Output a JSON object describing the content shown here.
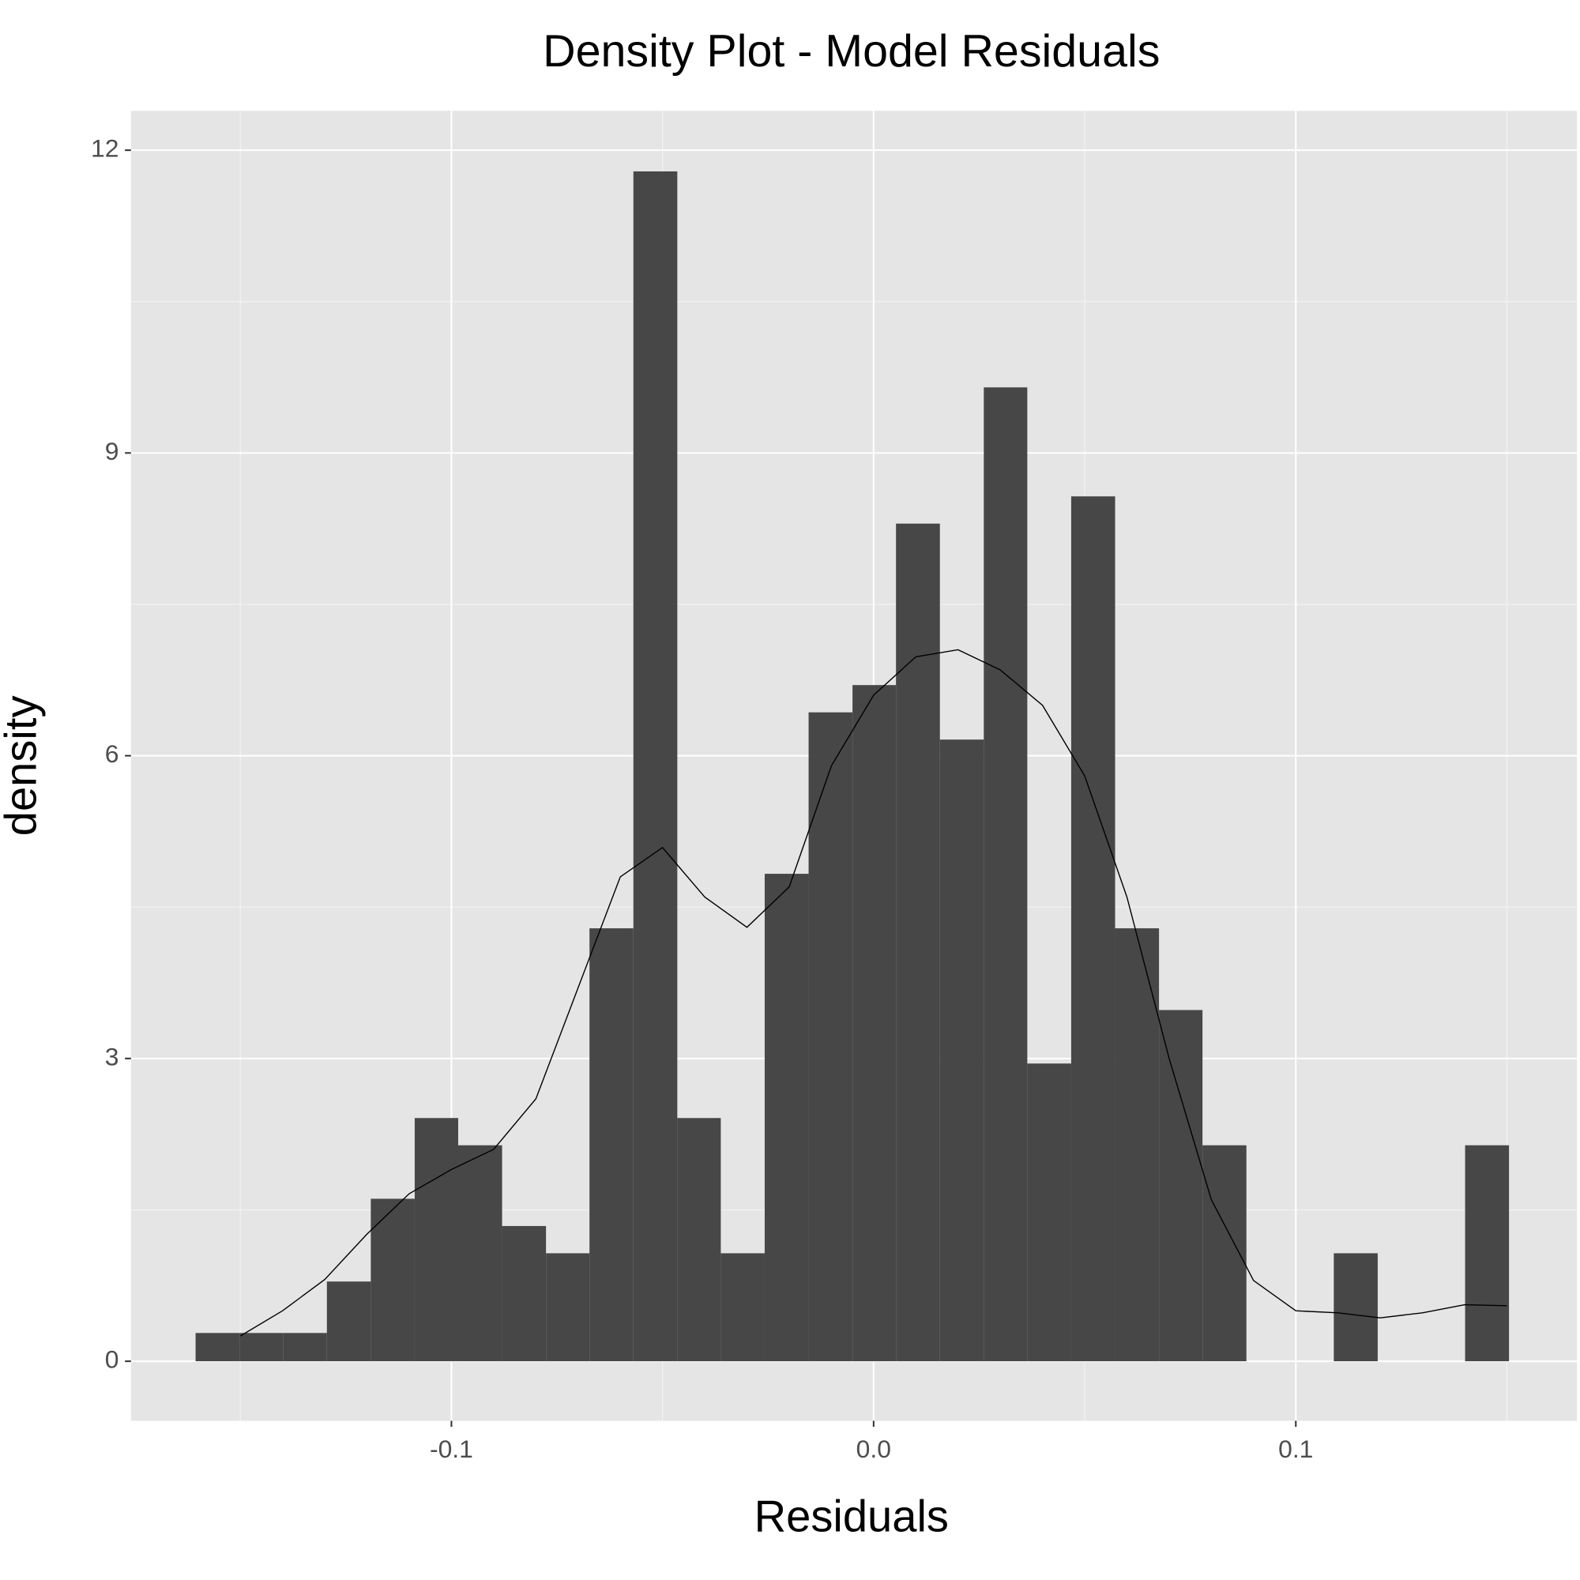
{
  "chart_data": {
    "type": "histogram",
    "title": "Density Plot - Model Residuals",
    "x_label": "Residuals",
    "y_label": "density",
    "bins": [
      -0.1606,
      -0.1502,
      -0.1399,
      -0.1295,
      -0.1191,
      -0.1087,
      -0.0984,
      -0.088,
      -0.0776,
      -0.0673,
      -0.0569,
      -0.0465,
      -0.0362,
      -0.0258,
      -0.0154,
      -0.005,
      0.0053,
      0.0157,
      0.0261,
      0.0364,
      0.0468,
      0.0572,
      0.0676,
      0.0779,
      0.0883,
      0.0987,
      0.109,
      0.1194,
      0.1298,
      0.1401,
      0.1505
    ],
    "values": [
      0.28,
      0.28,
      0.28,
      0.79,
      1.61,
      2.41,
      2.14,
      1.34,
      1.07,
      4.29,
      11.79,
      2.41,
      1.07,
      4.83,
      6.43,
      6.7,
      8.3,
      6.16,
      9.65,
      2.95,
      8.57,
      4.29,
      3.48,
      2.14,
      0,
      0,
      1.07,
      0,
      0,
      2.14
    ],
    "color": "#474747",
    "density": {
      "color": "#000000",
      "x": [
        -0.15,
        -0.14,
        -0.13,
        -0.12,
        -0.11,
        -0.1,
        -0.09,
        -0.08,
        -0.07,
        -0.06,
        -0.05,
        -0.04,
        -0.03,
        -0.02,
        -0.01,
        0.0,
        0.01,
        0.02,
        0.03,
        0.04,
        0.05,
        0.06,
        0.07,
        0.08,
        0.09,
        0.1,
        0.11,
        0.12,
        0.13,
        0.14,
        0.15
      ],
      "values": [
        0.25,
        0.5,
        0.81,
        1.26,
        1.66,
        1.9,
        2.1,
        2.6,
        3.7,
        4.8,
        5.09,
        4.6,
        4.3,
        4.7,
        5.9,
        6.6,
        6.98,
        7.05,
        6.85,
        6.5,
        5.8,
        4.6,
        3.0,
        1.6,
        0.8,
        0.5,
        0.48,
        0.43,
        0.48,
        0.56,
        0.55
      ]
    },
    "xlim": [
      -0.1759,
      0.1666
    ],
    "ylim": [
      -0.59,
      12.39
    ],
    "xticks": [
      {
        "value": -0.1,
        "label": "-0.1"
      },
      {
        "value": 0,
        "label": "0.0"
      },
      {
        "value": 0.1,
        "label": "0.1"
      }
    ],
    "yticks": [
      0,
      3,
      6,
      9,
      12
    ],
    "minor_xticks": [
      -0.15,
      -0.05,
      0.05,
      0.15
    ],
    "minor_yticks": [
      1.5,
      4.5,
      7.5,
      10.5
    ],
    "grid": true,
    "panel_color": "#e5e5e5"
  }
}
